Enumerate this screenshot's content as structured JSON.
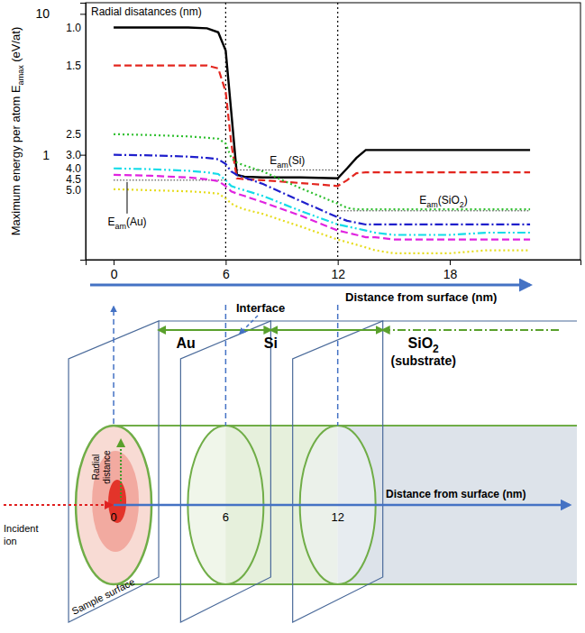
{
  "chart_data": {
    "type": "line",
    "title": "Radial disatances (nm)",
    "x_label": "Distance from surface (nm)",
    "y_label": "Maximum energy per atom Eamax (eV/at)",
    "log": "y",
    "xlim": [
      -1.5,
      25
    ],
    "xticks": [
      0,
      6,
      12,
      18
    ],
    "ylim": [
      0.18,
      12
    ],
    "yticks": [
      1,
      10
    ],
    "x": [
      0,
      2,
      4,
      5,
      5.6,
      6,
      6.3,
      6.6,
      7,
      8,
      10,
      12,
      12.5,
      13,
      13.5,
      14,
      15,
      16,
      18,
      20,
      22.3
    ],
    "series": [
      {
        "name": "1.0",
        "color": "#000000",
        "line_style": "solid",
        "values": [
          8.0,
          8.0,
          8.0,
          7.9,
          7.4,
          5.5,
          2.0,
          0.72,
          0.7,
          0.69,
          0.69,
          0.68,
          0.8,
          0.95,
          1.08,
          1.08,
          1.08,
          1.08,
          1.08,
          1.08,
          1.08
        ]
      },
      {
        "name": "1.5",
        "color": "#e3261f",
        "line_style": "dashed",
        "values": [
          4.3,
          4.3,
          4.3,
          4.3,
          4.1,
          2.8,
          1.2,
          0.68,
          0.67,
          0.66,
          0.63,
          0.6,
          0.66,
          0.74,
          0.75,
          0.75,
          0.75,
          0.75,
          0.75,
          0.75,
          0.75
        ]
      },
      {
        "name": "2.5",
        "color": "#2fbf2f",
        "line_style": "dotted",
        "values": [
          1.4,
          1.38,
          1.35,
          1.32,
          1.3,
          1.2,
          0.95,
          0.88,
          0.84,
          0.76,
          0.58,
          0.45,
          0.42,
          0.41,
          0.41,
          0.41,
          0.41,
          0.41,
          0.41,
          0.41,
          0.41
        ]
      },
      {
        "name": "3.0",
        "color": "#1f1fcc",
        "line_style": "dashdot",
        "values": [
          1.0,
          0.99,
          0.97,
          0.95,
          0.93,
          0.86,
          0.76,
          0.72,
          0.69,
          0.62,
          0.47,
          0.36,
          0.34,
          0.33,
          0.32,
          0.32,
          0.32,
          0.32,
          0.32,
          0.32,
          0.32
        ]
      },
      {
        "name": "4.0",
        "color": "#14dce8",
        "line_style": "dashdotdot",
        "values": [
          0.8,
          0.79,
          0.77,
          0.75,
          0.73,
          0.66,
          0.6,
          0.58,
          0.56,
          0.51,
          0.4,
          0.32,
          0.31,
          0.3,
          0.29,
          0.28,
          0.27,
          0.27,
          0.27,
          0.28,
          0.28
        ]
      },
      {
        "name": "4.5",
        "color": "#e024e0",
        "line_style": "dashed",
        "values": [
          0.72,
          0.71,
          0.69,
          0.67,
          0.65,
          0.6,
          0.55,
          0.53,
          0.51,
          0.46,
          0.37,
          0.29,
          0.28,
          0.27,
          0.26,
          0.26,
          0.25,
          0.25,
          0.25,
          0.25,
          0.25
        ]
      },
      {
        "name": "5.0",
        "color": "#e6dc1e",
        "line_style": "dotted",
        "values": [
          0.57,
          0.56,
          0.55,
          0.54,
          0.53,
          0.49,
          0.45,
          0.43,
          0.41,
          0.38,
          0.31,
          0.25,
          0.24,
          0.23,
          0.22,
          0.21,
          0.2,
          0.2,
          0.2,
          0.21,
          0.21
        ]
      }
    ],
    "vlines": [
      6,
      12
    ],
    "reference_lines": [
      {
        "label": "Eam(Si)",
        "value": 0.78,
        "x": [
          6.6,
          12
        ]
      },
      {
        "label": "Eam(SiO2)",
        "value": 0.4,
        "x": [
          12,
          22.3
        ]
      },
      {
        "label": "Eam(Au)",
        "value": 0.66,
        "x": [
          0,
          6
        ]
      }
    ]
  },
  "diagram": {
    "positions": [
      0,
      6,
      12
    ],
    "axis_label": "Distance from surface (nm)",
    "layers": [
      "Au",
      "Si",
      "SiO2"
    ],
    "substrate_label": "(substrate)",
    "interface_label": "Interface",
    "radial_label": "Radial distance",
    "ion_label": "Incident ion",
    "surface_label": "Sample surface"
  }
}
